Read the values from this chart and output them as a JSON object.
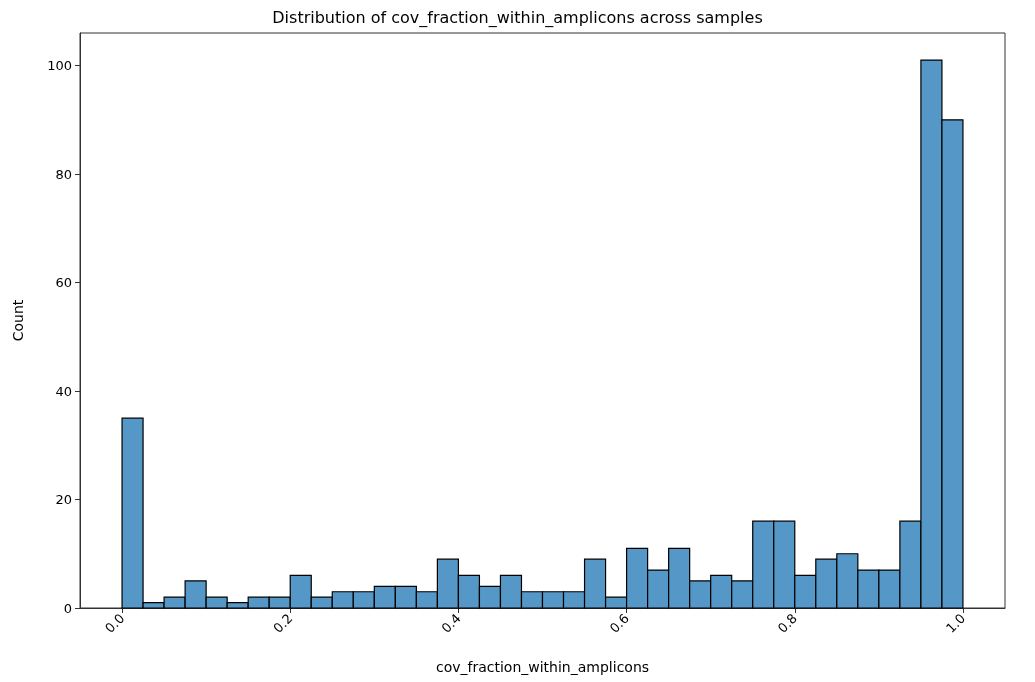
{
  "chart_data": {
    "type": "histogram",
    "title": "Distribution of cov_fraction_within_amplicons across samples",
    "xlabel": "cov_fraction_within_amplicons",
    "ylabel": "Count",
    "bins": [
      0,
      0.025,
      0.05,
      0.075,
      0.1,
      0.125,
      0.15,
      0.175,
      0.2,
      0.225,
      0.25,
      0.275,
      0.3,
      0.325,
      0.35,
      0.375,
      0.4,
      0.425,
      0.45,
      0.475,
      0.5,
      0.525,
      0.55,
      0.575,
      0.6,
      0.625,
      0.65,
      0.675,
      0.7,
      0.725,
      0.75,
      0.775,
      0.8,
      0.825,
      0.85,
      0.875,
      0.9,
      0.925,
      0.95,
      0.975,
      1
    ],
    "values": [
      35,
      1,
      2,
      5,
      2,
      1,
      2,
      2,
      6,
      2,
      3,
      3,
      4,
      4,
      3,
      9,
      6,
      4,
      6,
      3,
      3,
      3,
      9,
      2,
      11,
      7,
      11,
      5,
      6,
      5,
      16,
      16,
      6,
      9,
      10,
      7,
      7,
      16,
      101,
      90
    ],
    "color": "#5597c6",
    "xlim": [
      -0.05,
      1.05
    ],
    "ylim": [
      0,
      106
    ],
    "xticks": [
      {
        "value": 0,
        "label": "0.0"
      },
      0.2,
      0.4,
      0.6,
      0.8,
      {
        "value": 1,
        "label": "1.0"
      }
    ],
    "yticks": [
      0,
      20,
      40,
      60,
      80,
      100
    ],
    "grid": false
  }
}
